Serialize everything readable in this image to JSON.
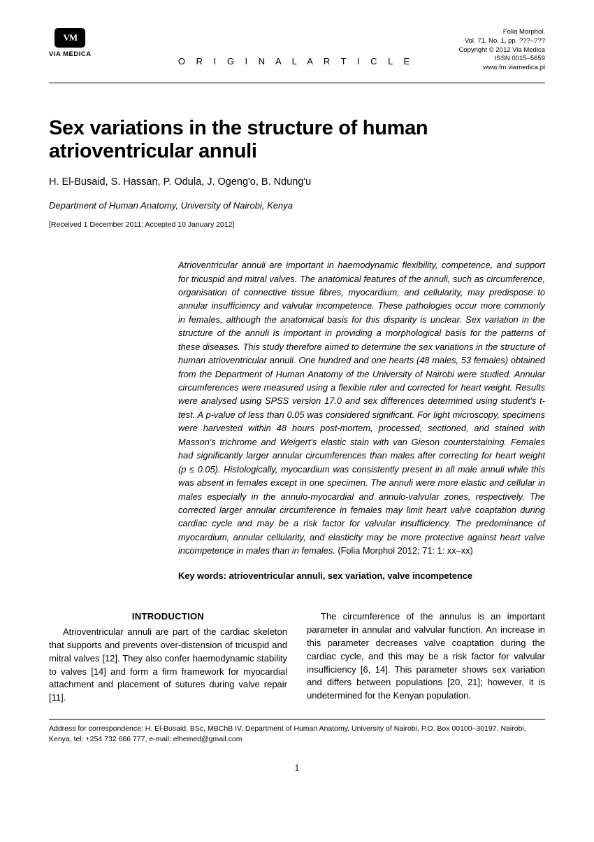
{
  "header": {
    "logo_mark": "VM",
    "logo_text": "VIA MEDICA",
    "article_type": "O R I G I N A L   A R T I C L E",
    "meta_lines": {
      "l1": "Folia Morphol.",
      "l2": "Vol. 71, No. 1, pp. ???–???",
      "l3": "Copyright © 2012 Via Medica",
      "l4": "ISSN 0015–5659",
      "l5": "www.fm.viamedica.pl"
    }
  },
  "title": "Sex variations in the structure of human atrioventricular annuli",
  "authors": "H. El-Busaid, S. Hassan, P. Odula, J. Ogeng'o, B. Ndung'u",
  "affiliation": "Department of Human Anatomy, University of Nairobi, Kenya",
  "dates": "[Received 1 December 2011; Accepted 10 January 2012]",
  "abstract": {
    "body": "Atrioventricular annuli are important in haemodynamic flexibility, competence, and support for tricuspid and mitral valves. The anatomical features of the annuli, such as circumference, organisation of connective tissue fibres, myocardium, and cellularity, may predispose to annular insufficiency and valvular incompetence. These pathologies occur more commonly in females, although the anatomical basis for this disparity is unclear. Sex variation in the structure of the annuli is important in providing a morphological basis for the patterns of these diseases. This study therefore aimed to determine the sex variations in the structure of human atrioventricular annuli. One hundred and one hearts (48 males, 53 females) obtained from the Department of Human Anatomy of the University of Nairobi were studied. Annular circumferences were measured using a flexible ruler and corrected for heart weight. Results were analysed using SPSS version 17.0 and sex differences determined using student's t-test. A p-value of less than 0.05 was considered significant. For light microscopy, specimens were harvested within 48 hours post-mortem, processed, sectioned, and stained with Masson's trichrome and Weigert's elastic stain with van Gieson counterstaining. Females had significantly larger annular circumferences than males after correcting for heart weight (p ≤ 0.05). Histologically, myocardium was consistently present in all male annuli while this was absent in females except in one specimen. The annuli were more elastic and cellular in males especially in the annulo-myocardial and annulo-valvular zones, respectively. The corrected larger annular circumference in females may limit heart valve coaptation during cardiac cycle and may be a risk factor for valvular insufficiency. The predominance of myocardium, annular cellularity, and elasticity may be more protective against heart valve incompetence in males than in females.",
    "citation": " (Folia Morphol 2012; 71: 1: xx–xx)",
    "keywords": "Key words: atrioventricular annuli, sex variation, valve incompetence"
  },
  "body": {
    "section_head": "INTRODUCTION",
    "col1": "Atrioventricular annuli are part of the cardiac skeleton that supports and prevents over-distension of tricuspid and mitral valves [12]. They also confer haemodynamic stability to valves [14] and form a firm framework for myocardial attachment and placement of sutures during valve repair [11].",
    "col2": "The circumference of the annulus is an important parameter in annular and valvular function. An increase in this parameter decreases valve coaptation during the cardiac cycle, and this may be a risk factor for valvular insufficiency [6, 14]. This parameter shows sex variation and differs between populations [20, 21]; however, it is undetermined for the Kenyan population."
  },
  "footer": {
    "correspondence": "Address for correspondence: H. El-Busaid, BSc, MBChB IV, Department of Human Anatomy, University of Nairobi, P.O. Box 00100–30197, Nairobi, Kenya, tel: +254 732 666 777, e-mail: elhemed@gmail.com",
    "page": "1"
  }
}
